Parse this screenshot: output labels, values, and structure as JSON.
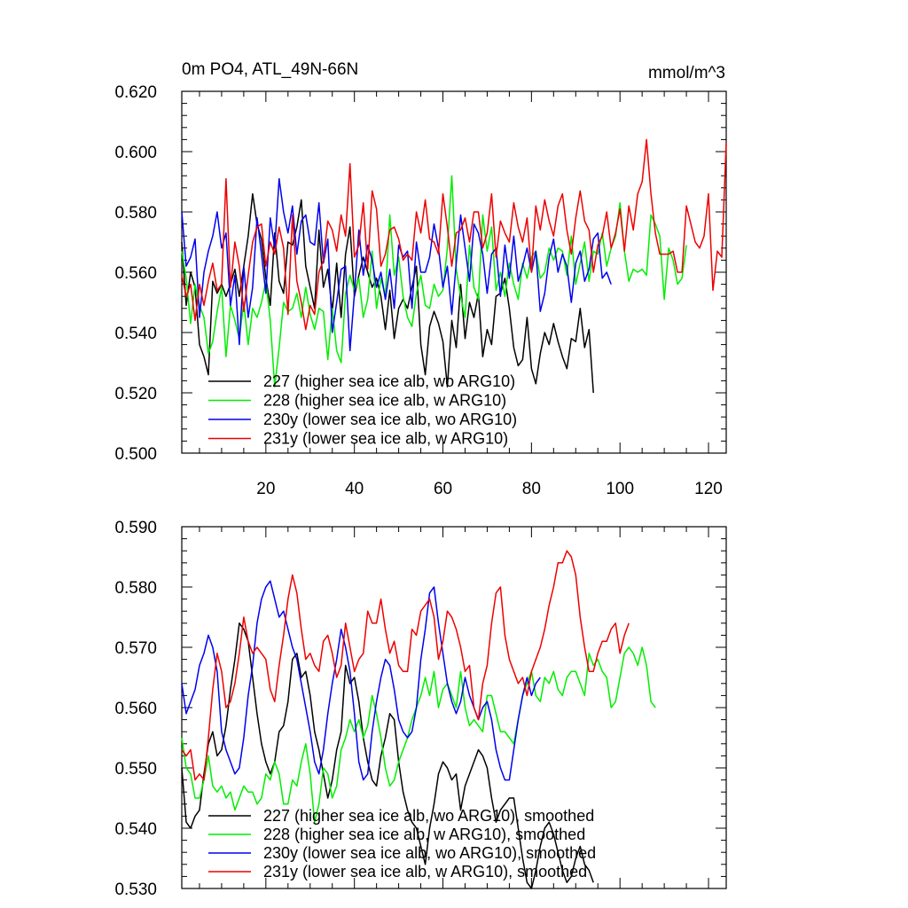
{
  "chart_data": [
    {
      "type": "line",
      "title": "0m PO4, ATL_49N-66N",
      "units": "mmol/m^3",
      "xlim": [
        1,
        124
      ],
      "ylim": [
        0.5,
        0.62
      ],
      "xticks": [
        "20",
        "40",
        "60",
        "80",
        "100",
        "120"
      ],
      "xtick_values": [
        20,
        40,
        60,
        80,
        100,
        120
      ],
      "yticks": [
        "0.500",
        "0.520",
        "0.540",
        "0.560",
        "0.580",
        "0.600",
        "0.620"
      ],
      "ytick_values": [
        0.5,
        0.52,
        0.54,
        0.56,
        0.58,
        0.6,
        0.62
      ],
      "legend_position": "bottom-left",
      "series": [
        {
          "name": "227 (higher sea ice alb, wo ARG10)",
          "color": "#000000",
          "values": [
            0.57,
            0.549,
            0.56,
            0.555,
            0.536,
            0.532,
            0.526,
            0.557,
            0.553,
            0.556,
            0.552,
            0.556,
            0.561,
            0.552,
            0.562,
            0.572,
            0.586,
            0.576,
            0.571,
            0.558,
            0.549,
            0.573,
            0.557,
            0.553,
            0.57,
            0.569,
            0.575,
            0.584,
            0.562,
            0.555,
            0.548,
            0.574,
            0.555,
            0.561,
            0.547,
            0.563,
            0.545,
            0.566,
            0.575,
            0.552,
            0.559,
            0.565,
            0.56,
            0.555,
            0.558,
            0.552,
            0.541,
            0.554,
            0.538,
            0.548,
            0.551,
            0.548,
            0.555,
            0.562,
            0.536,
            0.526,
            0.542,
            0.547,
            0.543,
            0.537,
            0.522,
            0.544,
            0.535,
            0.556,
            0.538,
            0.55,
            0.545,
            0.553,
            0.532,
            0.541,
            0.536,
            0.552,
            0.553,
            0.558,
            0.548,
            0.535,
            0.529,
            0.531,
            0.545,
            0.528,
            0.523,
            0.533,
            0.54,
            0.536,
            0.543,
            0.537,
            0.532,
            0.528,
            0.538,
            0.537,
            0.548,
            0.535,
            0.541,
            0.52
          ]
        },
        {
          "name": "228 (higher sea ice alb, w ARG10)",
          "color": "#00ee00",
          "values": [
            0.567,
            0.558,
            0.543,
            0.556,
            0.549,
            0.545,
            0.533,
            0.537,
            0.547,
            0.555,
            0.532,
            0.549,
            0.544,
            0.538,
            0.55,
            0.536,
            0.548,
            0.545,
            0.55,
            0.557,
            0.544,
            0.522,
            0.535,
            0.55,
            0.547,
            0.548,
            0.553,
            0.545,
            0.555,
            0.546,
            0.541,
            0.548,
            0.547,
            0.531,
            0.548,
            0.534,
            0.53,
            0.553,
            0.559,
            0.554,
            0.558,
            0.545,
            0.551,
            0.567,
            0.548,
            0.558,
            0.552,
            0.579,
            0.559,
            0.565,
            0.552,
            0.545,
            0.542,
            0.553,
            0.559,
            0.549,
            0.548,
            0.556,
            0.552,
            0.554,
            0.568,
            0.592,
            0.561,
            0.552,
            0.545,
            0.569,
            0.555,
            0.551,
            0.579,
            0.567,
            0.575,
            0.554,
            0.56,
            0.552,
            0.563,
            0.556,
            0.551,
            0.563,
            0.558,
            0.565,
            0.567,
            0.558,
            0.56,
            0.568,
            0.564,
            0.568,
            0.567,
            0.559,
            0.572,
            0.556,
            0.563,
            0.57,
            0.557,
            0.567,
            0.566,
            0.573,
            0.562,
            0.568,
            0.572,
            0.583,
            0.567,
            0.557,
            0.561,
            0.56,
            0.561,
            0.559,
            0.579,
            0.576,
            0.572,
            0.551,
            0.568,
            0.564,
            0.556,
            0.558,
            0.569
          ]
        },
        {
          "name": "230y (lower sea ice alb, wo ARG10)",
          "color": "#0000ee",
          "values": [
            0.58,
            0.562,
            0.565,
            0.571,
            0.545,
            0.56,
            0.567,
            0.572,
            0.58,
            0.568,
            0.573,
            0.549,
            0.559,
            0.536,
            0.562,
            0.545,
            0.555,
            0.578,
            0.566,
            0.553,
            0.578,
            0.568,
            0.591,
            0.58,
            0.573,
            0.582,
            0.566,
            0.577,
            0.579,
            0.57,
            0.569,
            0.583,
            0.563,
            0.571,
            0.54,
            0.55,
            0.561,
            0.562,
            0.534,
            0.553,
            0.574,
            0.559,
            0.569,
            0.564,
            0.555,
            0.56,
            0.551,
            0.561,
            0.548,
            0.569,
            0.565,
            0.567,
            0.548,
            0.57,
            0.56,
            0.56,
            0.565,
            0.576,
            0.568,
            0.555,
            0.562,
            0.546,
            0.563,
            0.579,
            0.568,
            0.557,
            0.576,
            0.573,
            0.566,
            0.553,
            0.566,
            0.568,
            0.552,
            0.569,
            0.558,
            0.572,
            0.557,
            0.562,
            0.568,
            0.56,
            0.567,
            0.547,
            0.553,
            0.565,
            0.571,
            0.56,
            0.566,
            0.562,
            0.55,
            0.563,
            0.567,
            0.557,
            0.561,
            0.571,
            0.573,
            0.558,
            0.56,
            0.556
          ]
        },
        {
          "name": "231y (lower sea ice alb, w ARG10)",
          "color": "#ee0000",
          "values": [
            0.559,
            0.552,
            0.556,
            0.544,
            0.556,
            0.549,
            0.557,
            0.563,
            0.554,
            0.556,
            0.591,
            0.555,
            0.57,
            0.562,
            0.547,
            0.559,
            0.57,
            0.575,
            0.576,
            0.562,
            0.57,
            0.566,
            0.575,
            0.568,
            0.546,
            0.579,
            0.557,
            0.55,
            0.541,
            0.549,
            0.546,
            0.56,
            0.564,
            0.577,
            0.574,
            0.567,
            0.579,
            0.572,
            0.596,
            0.565,
            0.569,
            0.583,
            0.561,
            0.587,
            0.581,
            0.562,
            0.566,
            0.574,
            0.575,
            0.571,
            0.564,
            0.566,
            0.564,
            0.58,
            0.573,
            0.584,
            0.571,
            0.57,
            0.566,
            0.586,
            0.575,
            0.562,
            0.573,
            0.574,
            0.578,
            0.57,
            0.58,
            0.58,
            0.568,
            0.573,
            0.586,
            0.565,
            0.577,
            0.573,
            0.57,
            0.583,
            0.575,
            0.57,
            0.578,
            0.56,
            0.582,
            0.574,
            0.584,
            0.577,
            0.572,
            0.582,
            0.586,
            0.574,
            0.566,
            0.578,
            0.587,
            0.577,
            0.574,
            0.56,
            0.569,
            0.572,
            0.58,
            0.568,
            0.573,
            0.581,
            0.567,
            0.582,
            0.574,
            0.586,
            0.59,
            0.604,
            0.586,
            0.573,
            0.566,
            0.566,
            0.566,
            0.567,
            0.56,
            0.56,
            0.582,
            0.576,
            0.57,
            0.568,
            0.572,
            0.586,
            0.554,
            0.567,
            0.565,
            0.603
          ]
        }
      ]
    },
    {
      "type": "line",
      "title": "",
      "xlim": [
        1,
        124
      ],
      "ylim": [
        0.53,
        0.59
      ],
      "xticks": [],
      "xtick_values": [
        20,
        40,
        60,
        80,
        100,
        120
      ],
      "yticks": [
        "0.530",
        "0.540",
        "0.550",
        "0.560",
        "0.570",
        "0.580",
        "0.590"
      ],
      "ytick_values": [
        0.53,
        0.54,
        0.55,
        0.56,
        0.57,
        0.58,
        0.59
      ],
      "legend_position": "bottom-left",
      "series": [
        {
          "name": "227 (higher sea ice alb, wo ARG10), smoothed",
          "color": "#000000",
          "values": [
            0.55,
            0.541,
            0.54,
            0.542,
            0.543,
            0.549,
            0.554,
            0.556,
            0.552,
            0.553,
            0.557,
            0.563,
            0.568,
            0.574,
            0.573,
            0.571,
            0.565,
            0.559,
            0.554,
            0.551,
            0.549,
            0.551,
            0.556,
            0.557,
            0.561,
            0.568,
            0.569,
            0.565,
            0.566,
            0.562,
            0.556,
            0.553,
            0.549,
            0.545,
            0.548,
            0.553,
            0.556,
            0.567,
            0.564,
            0.565,
            0.561,
            0.555,
            0.551,
            0.548,
            0.547,
            0.552,
            0.555,
            0.559,
            0.558,
            0.551,
            0.546,
            0.543,
            0.541,
            0.54,
            0.537,
            0.534,
            0.54,
            0.544,
            0.549,
            0.551,
            0.55,
            0.548,
            0.549,
            0.543,
            0.547,
            0.549,
            0.551,
            0.553,
            0.552,
            0.55,
            0.545,
            0.541,
            0.543,
            0.544,
            0.545,
            0.545,
            0.54,
            0.535,
            0.531,
            0.53,
            0.533,
            0.537,
            0.54,
            0.541,
            0.539,
            0.536,
            0.533,
            0.531,
            0.532,
            0.535,
            0.537,
            0.534,
            0.533,
            0.531
          ]
        },
        {
          "name": "228 (higher sea ice alb, w ARG10), smoothed",
          "color": "#00ee00",
          "values": [
            0.555,
            0.55,
            0.549,
            0.545,
            0.545,
            0.548,
            0.552,
            0.547,
            0.546,
            0.547,
            0.545,
            0.546,
            0.543,
            0.545,
            0.547,
            0.546,
            0.546,
            0.544,
            0.545,
            0.549,
            0.548,
            0.551,
            0.549,
            0.544,
            0.544,
            0.548,
            0.547,
            0.551,
            0.554,
            0.549,
            0.541,
            0.544,
            0.55,
            0.549,
            0.545,
            0.547,
            0.553,
            0.555,
            0.558,
            0.556,
            0.558,
            0.555,
            0.557,
            0.562,
            0.559,
            0.555,
            0.55,
            0.547,
            0.548,
            0.551,
            0.553,
            0.555,
            0.558,
            0.56,
            0.562,
            0.565,
            0.562,
            0.566,
            0.56,
            0.563,
            0.564,
            0.562,
            0.56,
            0.566,
            0.56,
            0.557,
            0.558,
            0.557,
            0.556,
            0.562,
            0.562,
            0.559,
            0.556,
            0.556,
            0.555,
            0.554,
            0.558,
            0.562,
            0.564,
            0.566,
            0.562,
            0.561,
            0.565,
            0.564,
            0.566,
            0.563,
            0.562,
            0.565,
            0.566,
            0.566,
            0.564,
            0.562,
            0.569,
            0.567,
            0.568,
            0.566,
            0.565,
            0.56,
            0.561,
            0.565,
            0.569,
            0.57,
            0.569,
            0.567,
            0.57,
            0.567,
            0.561,
            0.56
          ]
        },
        {
          "name": "230y (lower sea ice alb, wo ARG10), smoothed",
          "color": "#0000ee",
          "values": [
            0.564,
            0.559,
            0.561,
            0.563,
            0.567,
            0.569,
            0.572,
            0.57,
            0.566,
            0.556,
            0.553,
            0.551,
            0.549,
            0.55,
            0.555,
            0.562,
            0.567,
            0.574,
            0.578,
            0.58,
            0.581,
            0.578,
            0.575,
            0.576,
            0.573,
            0.57,
            0.568,
            0.564,
            0.56,
            0.556,
            0.551,
            0.549,
            0.553,
            0.559,
            0.564,
            0.568,
            0.573,
            0.57,
            0.566,
            0.559,
            0.551,
            0.548,
            0.549,
            0.556,
            0.561,
            0.565,
            0.568,
            0.567,
            0.563,
            0.558,
            0.556,
            0.555,
            0.556,
            0.56,
            0.568,
            0.573,
            0.579,
            0.58,
            0.574,
            0.569,
            0.564,
            0.561,
            0.559,
            0.561,
            0.565,
            0.562,
            0.56,
            0.558,
            0.56,
            0.561,
            0.558,
            0.553,
            0.55,
            0.548,
            0.548,
            0.553,
            0.558,
            0.562,
            0.565,
            0.562,
            0.564,
            0.565
          ]
        },
        {
          "name": "231y (lower sea ice alb, w ARG10), smoothed",
          "color": "#ee0000",
          "values": [
            0.553,
            0.552,
            0.553,
            0.548,
            0.549,
            0.548,
            0.555,
            0.563,
            0.569,
            0.566,
            0.56,
            0.561,
            0.564,
            0.569,
            0.575,
            0.571,
            0.569,
            0.57,
            0.569,
            0.568,
            0.563,
            0.561,
            0.567,
            0.572,
            0.578,
            0.582,
            0.579,
            0.573,
            0.568,
            0.569,
            0.567,
            0.566,
            0.571,
            0.572,
            0.569,
            0.565,
            0.567,
            0.574,
            0.57,
            0.566,
            0.568,
            0.569,
            0.576,
            0.574,
            0.574,
            0.578,
            0.573,
            0.569,
            0.571,
            0.567,
            0.566,
            0.566,
            0.573,
            0.572,
            0.576,
            0.577,
            0.578,
            0.575,
            0.568,
            0.571,
            0.576,
            0.575,
            0.573,
            0.57,
            0.566,
            0.567,
            0.56,
            0.558,
            0.564,
            0.567,
            0.574,
            0.579,
            0.58,
            0.572,
            0.568,
            0.566,
            0.564,
            0.565,
            0.562,
            0.566,
            0.568,
            0.57,
            0.573,
            0.577,
            0.58,
            0.584,
            0.584,
            0.586,
            0.585,
            0.582,
            0.575,
            0.57,
            0.566,
            0.566,
            0.569,
            0.571,
            0.571,
            0.573,
            0.574,
            0.569,
            0.572,
            0.574
          ]
        }
      ]
    }
  ]
}
